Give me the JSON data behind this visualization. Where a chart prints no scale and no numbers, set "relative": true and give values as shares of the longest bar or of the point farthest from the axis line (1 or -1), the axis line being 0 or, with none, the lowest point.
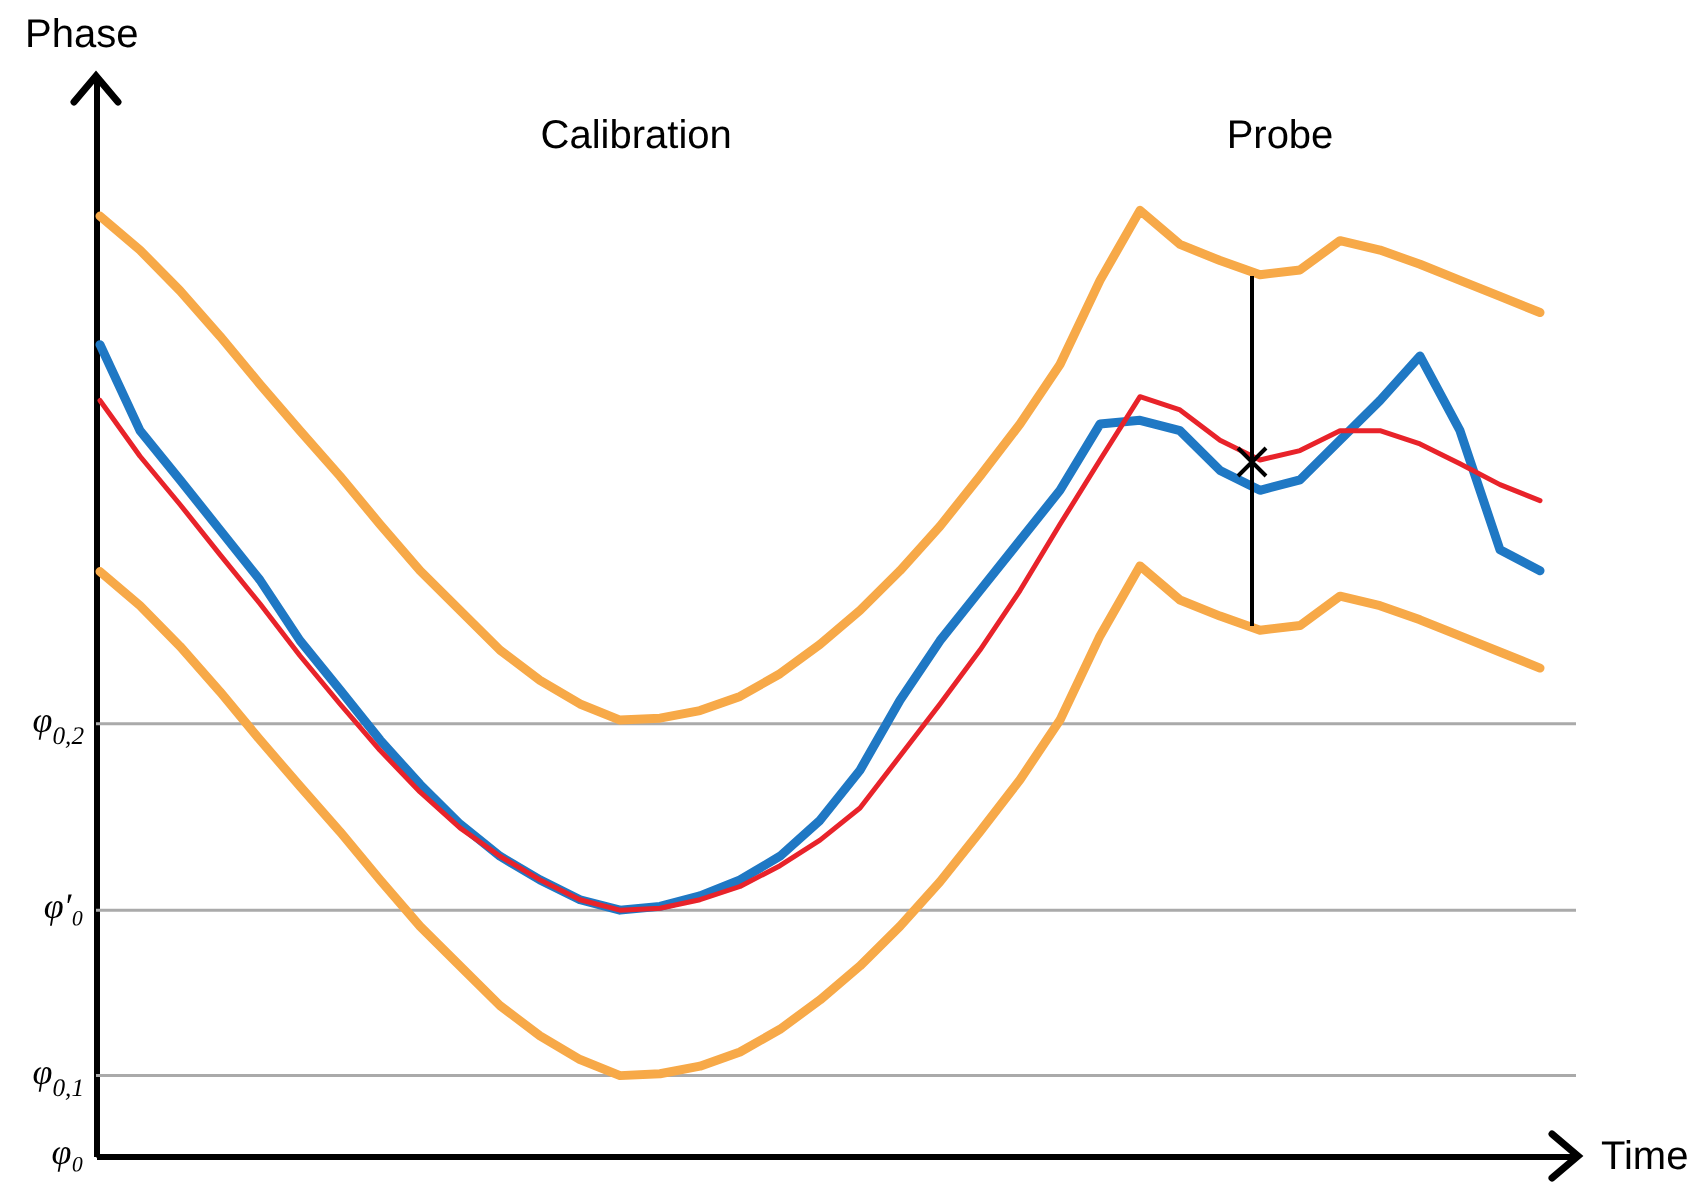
{
  "chart_data": {
    "type": "line",
    "relative": true,
    "xlabel": "Time",
    "ylabel": "Phase",
    "categories": [
      null,
      null,
      null,
      null,
      null,
      null,
      null,
      null,
      null,
      null,
      null,
      null,
      null,
      null,
      null,
      null,
      null,
      null,
      null,
      null,
      null,
      null,
      null,
      null,
      null,
      null,
      null,
      null,
      null,
      null,
      null,
      null,
      null,
      null,
      null,
      null,
      null
    ],
    "annotations": [
      "Calibration",
      "Probe"
    ],
    "ref_lines": [
      {
        "axis": "y",
        "value": 0.457,
        "label": "φ$_{0,2}$",
        "color": "#aaaaaa"
      },
      {
        "axis": "y",
        "value": 0.26,
        "label": "φ′₀",
        "color": "#aaaaaa"
      },
      {
        "axis": "y",
        "value": 0.085,
        "label": "φ$_{0,1}$",
        "color": "#aaaaaa"
      },
      {
        "axis": "y",
        "value": 0,
        "label": "φ₀",
        "color": "#000000"
      }
    ],
    "series": [
      {
        "color": "#f7a948",
        "values": [
          0.994,
          0.958,
          0.915,
          0.867,
          0.816,
          0.767,
          0.719,
          0.668,
          0.619,
          0.577,
          0.535,
          0.503,
          0.478,
          0.461,
          0.463,
          0.471,
          0.486,
          0.51,
          0.541,
          0.577,
          0.619,
          0.666,
          0.719,
          0.774,
          0.837,
          0.926,
          1.0,
          0.964,
          0.947,
          0.932,
          0.937,
          0.968,
          0.958,
          0.943,
          0.926,
          0.909,
          0.892
        ]
      },
      {
        "color": "#f7a948",
        "values": [
          0.618,
          0.582,
          0.539,
          0.491,
          0.44,
          0.391,
          0.343,
          0.292,
          0.243,
          0.201,
          0.159,
          0.127,
          0.102,
          0.085,
          0.087,
          0.095,
          0.11,
          0.134,
          0.165,
          0.201,
          0.243,
          0.29,
          0.343,
          0.398,
          0.461,
          0.55,
          0.624,
          0.588,
          0.571,
          0.556,
          0.561,
          0.592,
          0.582,
          0.567,
          0.55,
          0.533,
          0.516
        ]
      },
      {
        "color": "#1f78c4",
        "values": [
          0.858,
          0.767,
          0.715,
          0.662,
          0.609,
          0.545,
          0.493,
          0.44,
          0.393,
          0.351,
          0.317,
          0.292,
          0.271,
          0.26,
          0.264,
          0.275,
          0.292,
          0.317,
          0.355,
          0.408,
          0.482,
          0.545,
          0.598,
          0.651,
          0.704,
          0.774,
          0.778,
          0.767,
          0.725,
          0.704,
          0.715,
          0.757,
          0.799,
          0.846,
          0.767,
          0.641,
          0.619
        ]
      },
      {
        "color": "#e8232a",
        "values": [
          0.799,
          0.74,
          0.689,
          0.636,
          0.584,
          0.529,
          0.478,
          0.429,
          0.385,
          0.347,
          0.317,
          0.292,
          0.271,
          0.26,
          0.262,
          0.271,
          0.285,
          0.307,
          0.334,
          0.368,
          0.423,
          0.478,
          0.535,
          0.598,
          0.668,
          0.736,
          0.803,
          0.789,
          0.757,
          0.736,
          0.746,
          0.767,
          0.767,
          0.753,
          0.732,
          0.71,
          0.693
        ]
      }
    ]
  }
}
